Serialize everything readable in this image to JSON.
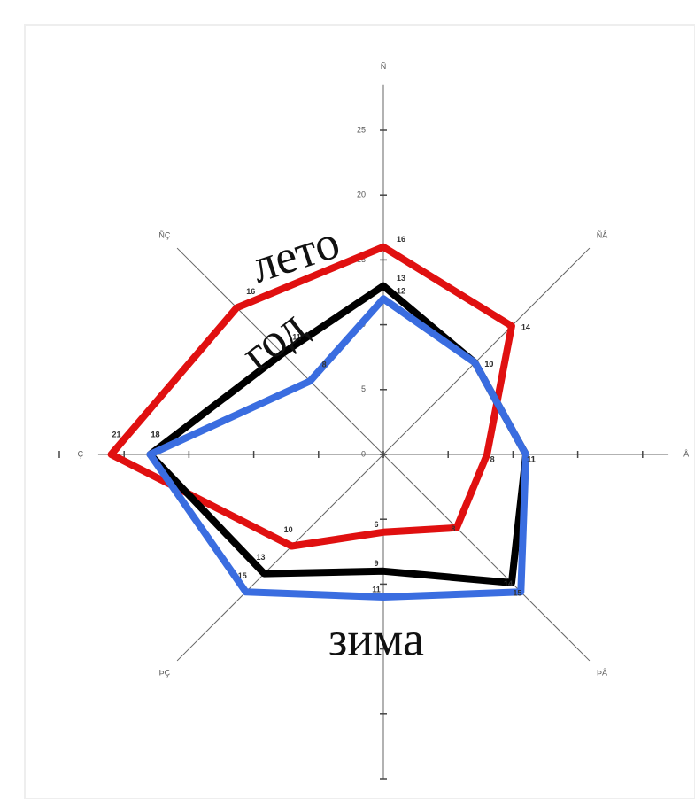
{
  "chart_data": {
    "type": "radar",
    "categories": [
      "Ñ",
      "ÑÂ",
      "Â",
      "ÞÂ",
      null,
      "ÞÇ",
      "Ç",
      "ÑÇ"
    ],
    "series": [
      {
        "name": "лето",
        "color": "#e01010",
        "values": [
          16,
          14,
          8,
          8,
          6,
          10,
          21,
          16
        ]
      },
      {
        "name": "год",
        "color": "#000000",
        "values": [
          13,
          10,
          11,
          14,
          9,
          13,
          18,
          11
        ]
      },
      {
        "name": "зима",
        "color": "#3a6de0",
        "values": [
          12,
          10,
          11,
          15,
          11,
          15,
          18,
          8
        ]
      }
    ],
    "ylim": [
      0,
      25
    ],
    "yticks": [
      0,
      5,
      10,
      15,
      20,
      25
    ],
    "grid": false
  }
}
